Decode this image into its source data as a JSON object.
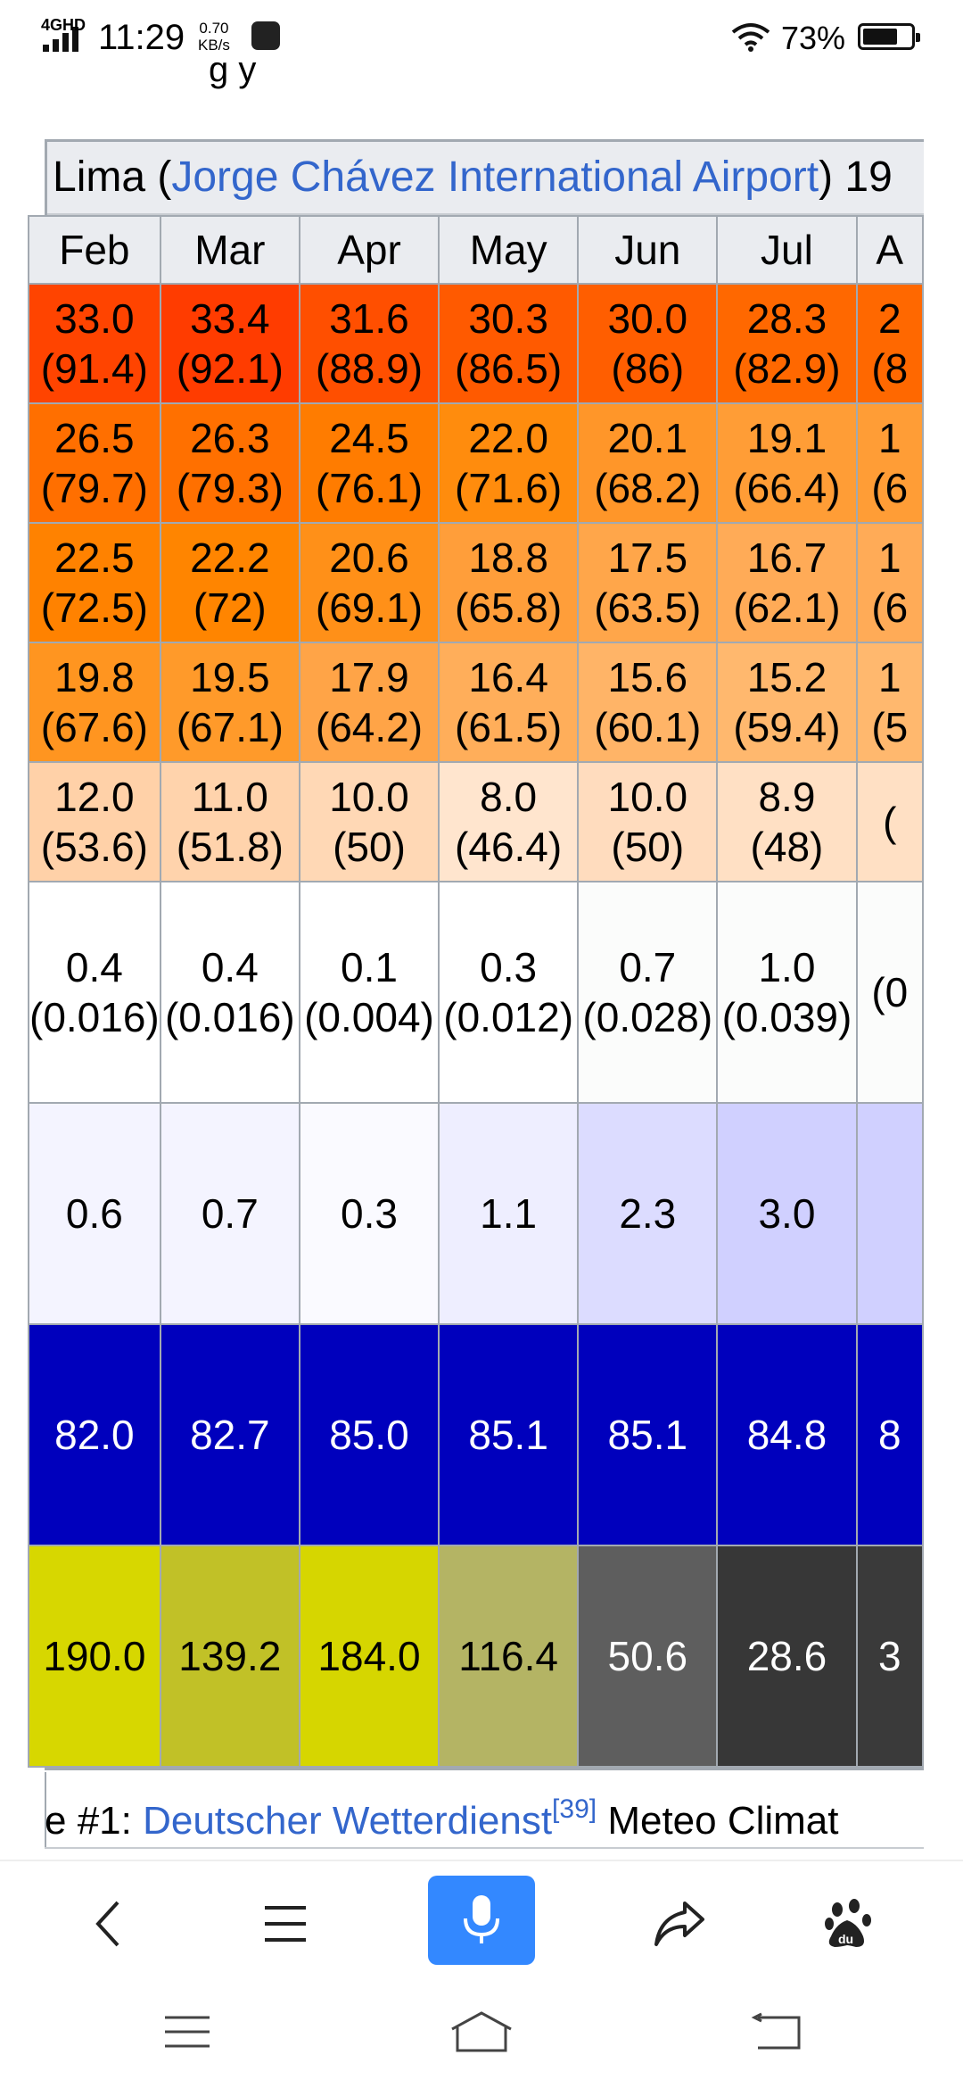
{
  "status_bar": {
    "network": "4GHD",
    "time": "11:29",
    "speed_value": "0.70",
    "speed_unit": "KB/s",
    "battery": "73%",
    "battery_level": 0.73
  },
  "page": {
    "peek_text": "g y"
  },
  "climate_table": {
    "caption_prefix": "Lima (",
    "caption_link": "Jorge Chávez International Airport",
    "caption_suffix": ") 19",
    "months": [
      "Feb",
      "Mar",
      "Apr",
      "May",
      "Jun",
      "Jul",
      "A"
    ],
    "rows": [
      {
        "name": "record-high",
        "cells": [
          [
            "33.0",
            "(91.4)"
          ],
          [
            "33.4",
            "(92.1)"
          ],
          [
            "31.6",
            "(88.9)"
          ],
          [
            "30.3",
            "(86.5)"
          ],
          [
            "30.0",
            "(86)"
          ],
          [
            "28.3",
            "(82.9)"
          ],
          [
            "2",
            "(8"
          ]
        ],
        "colors": [
          "#ff4400",
          "#ff3c00",
          "#ff4f00",
          "#ff5a00",
          "#ff5e00",
          "#ff6800",
          "#ff6800"
        ],
        "text_colors": [
          "#000",
          "#000",
          "#000",
          "#000",
          "#000",
          "#000",
          "#000"
        ]
      },
      {
        "name": "mean-max",
        "cells": [
          [
            "26.5",
            "(79.7)"
          ],
          [
            "26.3",
            "(79.3)"
          ],
          [
            "24.5",
            "(76.1)"
          ],
          [
            "22.0",
            "(71.6)"
          ],
          [
            "20.1",
            "(68.2)"
          ],
          [
            "19.1",
            "(66.4)"
          ],
          [
            "1",
            "(6"
          ]
        ],
        "colors": [
          "#ff6f00",
          "#ff7000",
          "#ff7c00",
          "#ff8c0d",
          "#ff9629",
          "#ff9d36",
          "#ff9d36"
        ],
        "text_colors": [
          "#000",
          "#000",
          "#000",
          "#000",
          "#000",
          "#000",
          "#000"
        ]
      },
      {
        "name": "daily-mean",
        "cells": [
          [
            "22.5",
            "(72.5)"
          ],
          [
            "22.2",
            "(72)"
          ],
          [
            "20.6",
            "(69.1)"
          ],
          [
            "18.8",
            "(65.8)"
          ],
          [
            "17.5",
            "(63.5)"
          ],
          [
            "16.7",
            "(62.1)"
          ],
          [
            "1",
            "(6"
          ]
        ],
        "colors": [
          "#ff8200",
          "#ff8500",
          "#ff9018",
          "#ff9e3a",
          "#ffa64a",
          "#ffab57",
          "#ffab57"
        ],
        "text_colors": [
          "#000",
          "#000",
          "#000",
          "#000",
          "#000",
          "#000",
          "#000"
        ]
      },
      {
        "name": "mean-min",
        "cells": [
          [
            "19.8",
            "(67.6)"
          ],
          [
            "19.5",
            "(67.1)"
          ],
          [
            "17.9",
            "(64.2)"
          ],
          [
            "16.4",
            "(61.5)"
          ],
          [
            "15.6",
            "(60.1)"
          ],
          [
            "15.2",
            "(59.4)"
          ],
          [
            "1",
            "(5"
          ]
        ],
        "colors": [
          "#ff9520",
          "#ff9a2a",
          "#ffa447",
          "#ffae5a",
          "#ffb467",
          "#ffb86e",
          "#ffb86e"
        ],
        "text_colors": [
          "#000",
          "#000",
          "#000",
          "#000",
          "#000",
          "#000",
          "#000"
        ]
      },
      {
        "name": "record-low",
        "cells": [
          [
            "12.0",
            "(53.6)"
          ],
          [
            "11.0",
            "(51.8)"
          ],
          [
            "10.0",
            "(50)"
          ],
          [
            "8.0",
            "(46.4)"
          ],
          [
            "10.0",
            "(50)"
          ],
          [
            "8.9",
            "(48)"
          ],
          [
            "",
            "("
          ]
        ],
        "colors": [
          "#ffd1a8",
          "#ffd3ac",
          "#ffd8b5",
          "#ffe5ce",
          "#ffdcbe",
          "#ffe0c4",
          "#ffe0c4"
        ],
        "text_colors": [
          "#000",
          "#000",
          "#000",
          "#000",
          "#000",
          "#000",
          "#000"
        ]
      },
      {
        "name": "precipitation",
        "cells": [
          [
            "0.4",
            "(0.016)"
          ],
          [
            "0.4",
            "(0.016)"
          ],
          [
            "0.1",
            "(0.004)"
          ],
          [
            "0.3",
            "(0.012)"
          ],
          [
            "0.7",
            "(0.028)"
          ],
          [
            "1.0",
            "(0.039)"
          ],
          [
            "",
            "(0"
          ]
        ],
        "colors": [
          "#ffffff",
          "#ffffff",
          "#ffffff",
          "#ffffff",
          "#fbfcfb",
          "#fbfcfb",
          "#fbfcfb"
        ],
        "text_colors": [
          "#000",
          "#000",
          "#000",
          "#000",
          "#000",
          "#000",
          "#000"
        ]
      },
      {
        "name": "precipitation-days",
        "cells": [
          [
            "0.6",
            ""
          ],
          [
            "0.7",
            ""
          ],
          [
            "0.3",
            ""
          ],
          [
            "1.1",
            ""
          ],
          [
            "2.3",
            ""
          ],
          [
            "3.0",
            ""
          ],
          [
            "",
            ""
          ]
        ],
        "colors": [
          "#f4f4ff",
          "#f4f4ff",
          "#fafaff",
          "#eeeeff",
          "#dcdcff",
          "#d0d0ff",
          "#d0d0ff"
        ],
        "text_colors": [
          "#000",
          "#000",
          "#000",
          "#000",
          "#000",
          "#000",
          "#000"
        ]
      },
      {
        "name": "humidity",
        "cells": [
          [
            "82.0",
            ""
          ],
          [
            "82.7",
            ""
          ],
          [
            "85.0",
            ""
          ],
          [
            "85.1",
            ""
          ],
          [
            "85.1",
            ""
          ],
          [
            "84.8",
            ""
          ],
          [
            "8",
            ""
          ]
        ],
        "colors": [
          "#0000bd",
          "#0000bd",
          "#0000bd",
          "#0000bd",
          "#0000bd",
          "#0000bd",
          "#0000bd"
        ],
        "text_colors": [
          "#fff",
          "#fff",
          "#fff",
          "#fff",
          "#fff",
          "#fff",
          "#fff"
        ]
      },
      {
        "name": "sunshine-hours",
        "cells": [
          [
            "190.0",
            ""
          ],
          [
            "139.2",
            ""
          ],
          [
            "184.0",
            ""
          ],
          [
            "116.4",
            ""
          ],
          [
            "50.6",
            ""
          ],
          [
            "28.6",
            ""
          ],
          [
            "3",
            ""
          ]
        ],
        "colors": [
          "#d7d700",
          "#c1c127",
          "#d6d600",
          "#b4b464",
          "#5e5e5e",
          "#373737",
          "#3a3a3a"
        ],
        "text_colors": [
          "#000",
          "#000",
          "#000",
          "#000",
          "#fff",
          "#fff",
          "#fff"
        ]
      }
    ]
  },
  "sources": {
    "prefix": "e #1: ",
    "link": "Deutscher Wetterdienst",
    "ref": "[39]",
    "suffix": " Meteo Climat"
  },
  "toolbar": {
    "icons": [
      "back-icon",
      "menu-icon",
      "microphone-icon",
      "share-icon",
      "baidu-paw-icon"
    ]
  },
  "navbar": {
    "icons": [
      "recents-icon",
      "home-icon",
      "back-icon"
    ]
  }
}
